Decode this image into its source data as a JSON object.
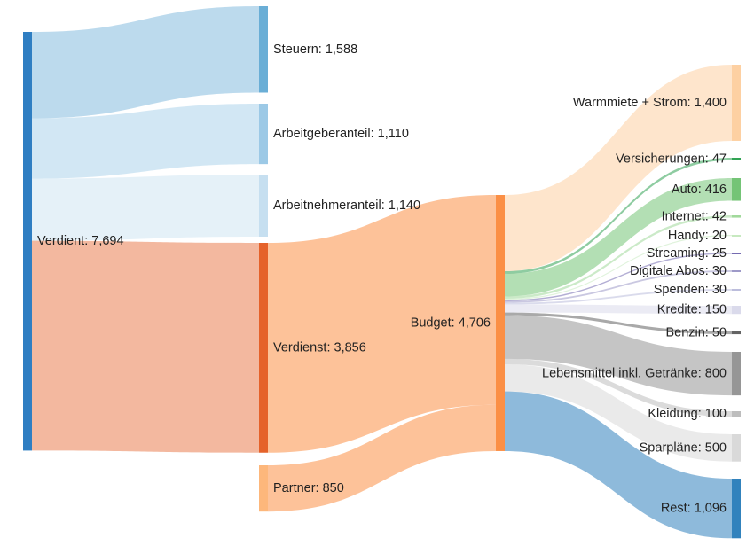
{
  "chart_data": {
    "type": "sankey",
    "title": "",
    "nodes": [
      {
        "id": "verdient",
        "label": "Verdient: 7,694",
        "value": 7694,
        "color": "#2F7EC2"
      },
      {
        "id": "steuern",
        "label": "Steuern: 1,588",
        "value": 1588,
        "color": "#6AAED6"
      },
      {
        "id": "arbeitgeber",
        "label": "Arbeitgeberanteil: 1,110",
        "value": 1110,
        "color": "#9CC9E6"
      },
      {
        "id": "arbeitnehmer",
        "label": "Arbeitnehmeranteil: 1,140",
        "value": 1140,
        "color": "#C6DFF0"
      },
      {
        "id": "verdienst",
        "label": "Verdienst: 3,856",
        "value": 3856,
        "color": "#E5622A"
      },
      {
        "id": "partner",
        "label": "Partner: 850",
        "value": 850,
        "color": "#FDB77B"
      },
      {
        "id": "budget",
        "label": "Budget: 4,706",
        "value": 4706,
        "color": "#FB8F45"
      },
      {
        "id": "warmmiete",
        "label": "Warmmiete + Strom: 1,400",
        "value": 1400,
        "color": "#FDD0A2"
      },
      {
        "id": "versicherungen",
        "label": "Versicherungen: 47",
        "value": 47,
        "color": "#31A354"
      },
      {
        "id": "auto",
        "label": "Auto: 416",
        "value": 416,
        "color": "#74C476"
      },
      {
        "id": "internet",
        "label": "Internet: 42",
        "value": 42,
        "color": "#A1D99B"
      },
      {
        "id": "handy",
        "label": "Handy: 20",
        "value": 20,
        "color": "#C7E9C0"
      },
      {
        "id": "streaming",
        "label": "Streaming: 25",
        "value": 25,
        "color": "#756BB1"
      },
      {
        "id": "digitale",
        "label": "Digitale Abos: 30",
        "value": 30,
        "color": "#9E9AC8"
      },
      {
        "id": "spenden",
        "label": "Spenden: 30",
        "value": 30,
        "color": "#BCBDDC"
      },
      {
        "id": "kredite",
        "label": "Kredite: 150",
        "value": 150,
        "color": "#DADAEB"
      },
      {
        "id": "benzin",
        "label": "Benzin: 50",
        "value": 50,
        "color": "#636363"
      },
      {
        "id": "lebensmittel",
        "label": "Lebensmittel inkl. Getränke: 800",
        "value": 800,
        "color": "#969696"
      },
      {
        "id": "kleidung",
        "label": "Kleidung: 100",
        "value": 100,
        "color": "#BDBDBD"
      },
      {
        "id": "sparplaene",
        "label": "Sparpläne: 500",
        "value": 500,
        "color": "#D9D9D9"
      },
      {
        "id": "rest",
        "label": "Rest: 1,096",
        "value": 1096,
        "color": "#3182BD"
      }
    ],
    "links": [
      {
        "source": "verdient",
        "target": "steuern",
        "value": 1588
      },
      {
        "source": "verdient",
        "target": "arbeitgeber",
        "value": 1110
      },
      {
        "source": "verdient",
        "target": "arbeitnehmer",
        "value": 1140
      },
      {
        "source": "verdient",
        "target": "verdienst",
        "value": 3856
      },
      {
        "source": "verdienst",
        "target": "budget",
        "value": 3856
      },
      {
        "source": "partner",
        "target": "budget",
        "value": 850
      },
      {
        "source": "budget",
        "target": "warmmiete",
        "value": 1400
      },
      {
        "source": "budget",
        "target": "versicherungen",
        "value": 47
      },
      {
        "source": "budget",
        "target": "auto",
        "value": 416
      },
      {
        "source": "budget",
        "target": "internet",
        "value": 42
      },
      {
        "source": "budget",
        "target": "handy",
        "value": 20
      },
      {
        "source": "budget",
        "target": "streaming",
        "value": 25
      },
      {
        "source": "budget",
        "target": "digitale",
        "value": 30
      },
      {
        "source": "budget",
        "target": "spenden",
        "value": 30
      },
      {
        "source": "budget",
        "target": "kredite",
        "value": 150
      },
      {
        "source": "budget",
        "target": "benzin",
        "value": 50
      },
      {
        "source": "budget",
        "target": "lebensmittel",
        "value": 800
      },
      {
        "source": "budget",
        "target": "kleidung",
        "value": 100
      },
      {
        "source": "budget",
        "target": "sparplaene",
        "value": 500
      },
      {
        "source": "budget",
        "target": "rest",
        "value": 1096
      }
    ]
  }
}
